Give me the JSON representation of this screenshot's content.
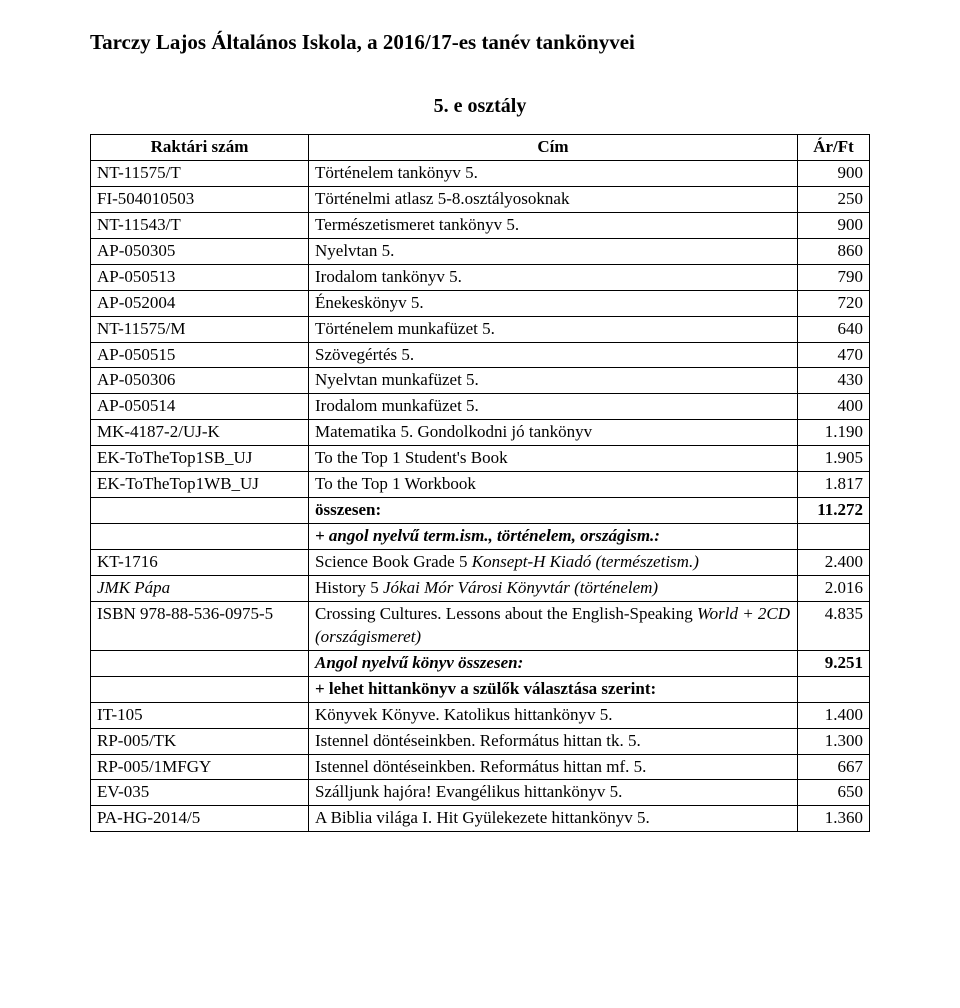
{
  "page_title": "Tarczy Lajos Általános Iskola, a 2016/17-es tanév tankönyvei",
  "section_title": "5. e osztály",
  "headers": {
    "code": "Raktári szám",
    "title": "Cím",
    "price": "Ár/Ft"
  },
  "rows": [
    {
      "code": "NT-11575/T",
      "title": "Történelem tankönyv 5.",
      "price": "900"
    },
    {
      "code": "FI-504010503",
      "title": "Történelmi atlasz 5-8.osztályosoknak",
      "price": "250"
    },
    {
      "code": "NT-11543/T",
      "title": "Természetismeret tankönyv 5.",
      "price": "900"
    },
    {
      "code": "AP-050305",
      "title": "Nyelvtan 5.",
      "price": "860"
    },
    {
      "code": "AP-050513",
      "title": "Irodalom tankönyv 5.",
      "price": "790"
    },
    {
      "code": "AP-052004",
      "title": "Énekeskönyv 5.",
      "price": "720"
    },
    {
      "code": "NT-11575/M",
      "title": "Történelem munkafüzet 5.",
      "price": "640"
    },
    {
      "code": "AP-050515",
      "title": "Szövegértés 5.",
      "price": "470"
    },
    {
      "code": "AP-050306",
      "title": "Nyelvtan munkafüzet 5.",
      "price": "430"
    },
    {
      "code": "AP-050514",
      "title": "Irodalom munkafüzet 5.",
      "price": "400"
    },
    {
      "code": "MK-4187-2/UJ-K",
      "title": "Matematika 5. Gondolkodni jó tankönyv",
      "price": "1.190"
    },
    {
      "code": "EK-ToTheTop1SB_UJ",
      "title": "To the Top 1 Student's Book",
      "price": "1.905"
    },
    {
      "code": "EK-ToTheTop1WB_UJ",
      "title": "To the Top 1 Workbook",
      "price": "1.817"
    },
    {
      "code": "",
      "title": "összesen:",
      "price": "11.272",
      "bold_title": true,
      "bold_price": true
    },
    {
      "code": "",
      "title": "+ angol nyelvű term.ism., történelem, országism.:",
      "price": "",
      "italic_title": true,
      "bold_title": true
    },
    {
      "code": "KT-1716",
      "title_parts": [
        {
          "t": "Science Book Grade 5 "
        },
        {
          "t": "Konsept-H Kiadó (természetism.)",
          "italic": true
        }
      ],
      "price": "2.400"
    },
    {
      "code": "JMK Pápa",
      "italic_code": true,
      "title_parts": [
        {
          "t": "History 5 "
        },
        {
          "t": "Jókai Mór Városi Könyvtár (történelem)",
          "italic": true
        }
      ],
      "price": "2.016"
    },
    {
      "code": "ISBN 978-88-536-0975-5",
      "title_parts": [
        {
          "t": "Crossing Cultures. Lessons about the English-Speaking "
        },
        {
          "t": "World + 2CD (országismeret)",
          "italic": true
        }
      ],
      "price": "4.835"
    },
    {
      "code": "",
      "title": "Angol nyelvű könyv összesen:",
      "price": "9.251",
      "italic_title": true,
      "bold_title": true,
      "bold_price": true
    },
    {
      "code": "",
      "title": "+ lehet hittankönyv a szülők választása szerint:",
      "price": "",
      "bold_title": true
    },
    {
      "code": "IT-105",
      "title": "Könyvek Könyve. Katolikus hittankönyv 5.",
      "price": "1.400"
    },
    {
      "code": "RP-005/TK",
      "title": "Istennel döntéseinkben. Református hittan tk. 5.",
      "price": "1.300"
    },
    {
      "code": "RP-005/1MFGY",
      "title": "Istennel döntéseinkben. Református hittan mf. 5.",
      "price": "667"
    },
    {
      "code": "EV-035",
      "title": "Szálljunk hajóra! Evangélikus hittankönyv 5.",
      "price": "650"
    },
    {
      "code": "PA-HG-2014/5",
      "title": "A Biblia világa I. Hit Gyülekezete hittankönyv 5.",
      "price": "1.360"
    }
  ]
}
